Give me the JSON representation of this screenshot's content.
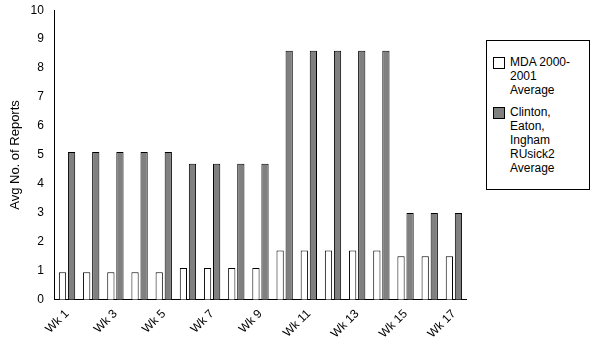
{
  "chart_data": {
    "type": "bar",
    "ylabel": "Avg No. of Reports",
    "categories": [
      "Wk 1",
      null,
      "Wk 3",
      null,
      "Wk 5",
      null,
      "Wk 7",
      null,
      "Wk 9",
      null,
      "Wk 11",
      null,
      "Wk 13",
      null,
      "Wk 15",
      null,
      "Wk 17"
    ],
    "series": [
      {
        "name": "MDA 2000-2001 Average",
        "color": "#ffffff",
        "values": [
          0.95,
          0.95,
          0.95,
          0.95,
          0.95,
          1.1,
          1.1,
          1.1,
          1.1,
          1.7,
          1.7,
          1.7,
          1.7,
          1.7,
          1.5,
          1.5,
          1.5
        ]
      },
      {
        "name": "Clinton, Eaton, Ingham RUsick2 Average",
        "color": "#808080",
        "values": [
          5.1,
          5.1,
          5.1,
          5.1,
          5.1,
          4.7,
          4.7,
          4.7,
          4.7,
          8.6,
          8.6,
          8.6,
          8.6,
          8.6,
          3.0,
          3.0,
          3.0
        ]
      }
    ],
    "ylim": [
      0,
      10
    ],
    "yticks": [
      0,
      1,
      2,
      3,
      4,
      5,
      6,
      7,
      8,
      9,
      10
    ],
    "grid": false,
    "legend": "right"
  }
}
